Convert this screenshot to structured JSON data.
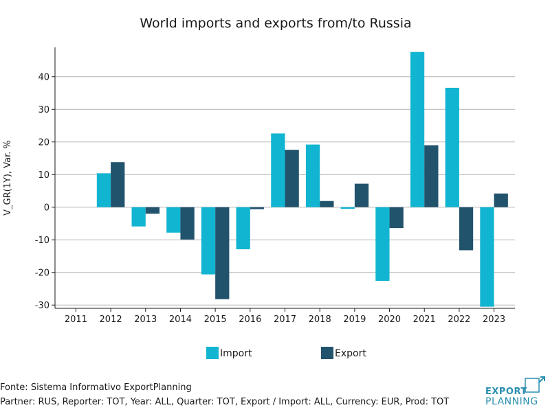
{
  "colors": {
    "import": "#12b5d1",
    "export": "#22536d",
    "grid": "#b3b3b3",
    "axis": "#1a1a1a",
    "brand": "#2a8fb0"
  },
  "chart_data": {
    "type": "bar",
    "title": "World imports and exports from/to Russia",
    "ylabel": "V_GR(1Y), Var. %",
    "xlabel": "",
    "categories": [
      "2011",
      "2012",
      "2013",
      "2014",
      "2015",
      "2016",
      "2017",
      "2018",
      "2019",
      "2020",
      "2021",
      "2022",
      "2023"
    ],
    "series": [
      {
        "name": "Import",
        "color": "#12b5d1",
        "values": [
          null,
          10.4,
          -5.9,
          -7.8,
          -20.6,
          -12.9,
          22.6,
          19.2,
          -0.5,
          -22.6,
          47.6,
          36.6,
          -30.5
        ]
      },
      {
        "name": "Export",
        "color": "#22536d",
        "values": [
          null,
          13.8,
          -2.0,
          -9.9,
          -28.2,
          -0.6,
          17.6,
          1.9,
          7.2,
          -6.4,
          19.0,
          -13.2,
          4.2
        ]
      }
    ],
    "ylim": [
      -31,
      49
    ],
    "yticks": [
      -30,
      -20,
      -10,
      0,
      10,
      20,
      30,
      40
    ],
    "grid": true,
    "legend_position": "bottom"
  },
  "footer": {
    "source": "Fonte: Sistema Informativo ExportPlanning",
    "params": "Partner: RUS, Reporter: TOT, Year: ALL, Quarter: TOT, Export / Import: ALL, Currency: EUR, Prod: TOT"
  },
  "logo": {
    "line1": "EXPORT",
    "line2": "PLANNING"
  }
}
